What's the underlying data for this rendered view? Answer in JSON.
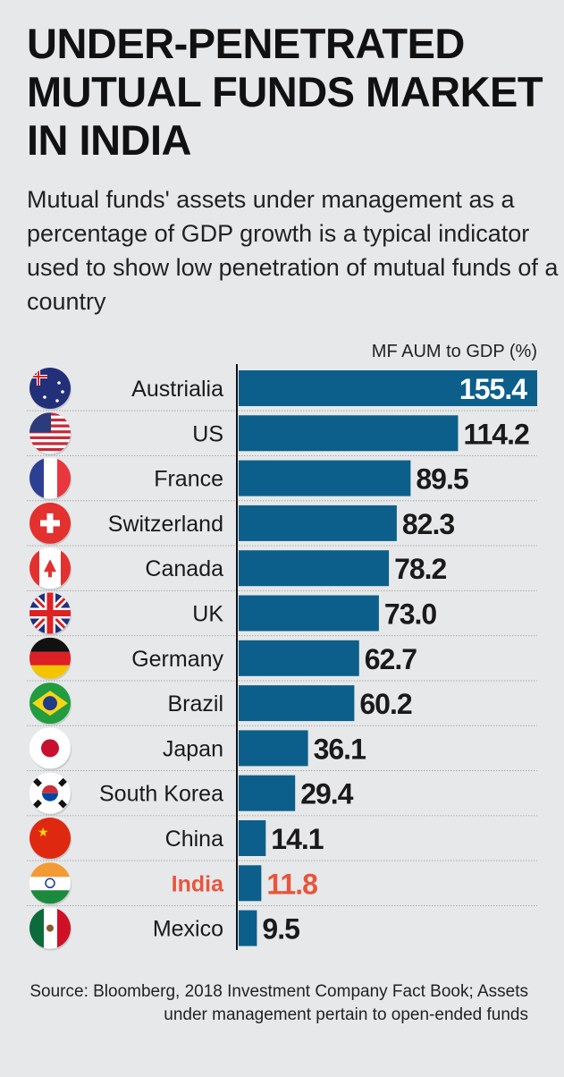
{
  "title": "UNDER-PENETRATED MUTUAL FUNDS MARKET IN INDIA",
  "subtitle": "Mutual funds' assets under management as a percentage of GDP growth is a typical indicator used to show low penetration of mutual funds of a country",
  "source": "Source: Bloomberg, 2018 Investment Company Fact Book; Assets under management pertain to open-ended funds",
  "colors": {
    "bar": "#0b5f8a",
    "highlight": "#e8553b",
    "label": "#1a1a1a",
    "background": "#e6e8ea"
  },
  "chart_data": {
    "type": "bar",
    "orientation": "horizontal",
    "unit_label": "MF AUM to GDP (%)",
    "categories": [
      "Austrialia",
      "US",
      "France",
      "Switzerland",
      "Canada",
      "UK",
      "Germany",
      "Brazil",
      "Japan",
      "South Korea",
      "China",
      "India",
      "Mexico"
    ],
    "values": [
      155.4,
      114.2,
      89.5,
      82.3,
      78.2,
      73.0,
      62.7,
      60.2,
      36.1,
      29.4,
      14.1,
      11.8,
      9.5
    ],
    "value_labels": [
      "155.4",
      "114.2",
      "89.5",
      "82.3",
      "78.2",
      "73.0",
      "62.7",
      "60.2",
      "36.1",
      "29.4",
      "14.1",
      "11.8",
      "9.5"
    ],
    "flags": [
      "australia-flag",
      "us-flag",
      "france-flag",
      "switzerland-flag",
      "canada-flag",
      "uk-flag",
      "germany-flag",
      "brazil-flag",
      "japan-flag",
      "south-korea-flag",
      "china-flag",
      "india-flag",
      "mexico-flag"
    ],
    "highlight": "India",
    "xlim": [
      0,
      155.4
    ],
    "grid": false
  }
}
